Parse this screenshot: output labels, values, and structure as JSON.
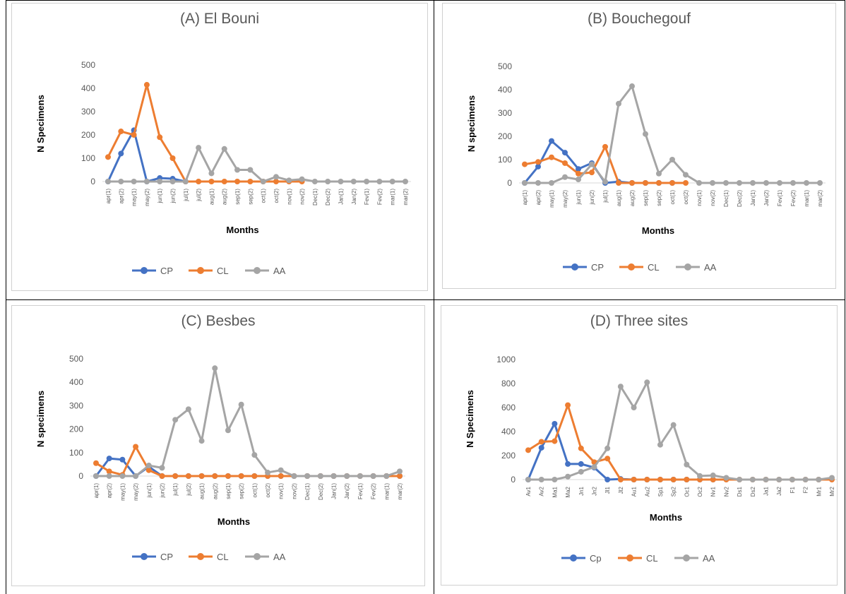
{
  "colors": {
    "CP": "#4472c4",
    "CL": "#ed7d31",
    "AA": "#a5a5a5"
  },
  "chart_data": [
    {
      "type": "line",
      "title": "(A) El Bouni",
      "xlabel": "Months",
      "ylabel": "N Specimens",
      "ylim": [
        0,
        500
      ],
      "yticks": [
        0,
        100,
        200,
        300,
        400,
        500
      ],
      "categories": [
        "apr(1)",
        "apr(2)",
        "may(1)",
        "may(2)",
        "jun(1)",
        "jun(2)",
        "jul(1)",
        "jul(2)",
        "aug(1)",
        "aug(2)",
        "sep(1)",
        "sep(2)",
        "oct(1)",
        "oct(2)",
        "nov(1)",
        "nov(2)",
        "Dec(1)",
        "Dec(2)",
        "Jan(1)",
        "Jan(2)",
        "Fev(1)",
        "Fev(2)",
        "mar(1)",
        "mar(2)"
      ],
      "series": [
        {
          "name": "CP",
          "values": [
            0,
            120,
            220,
            0,
            15,
            12,
            0,
            null,
            null,
            null,
            null,
            null,
            null,
            null,
            null,
            null,
            null,
            null,
            null,
            null,
            null,
            null,
            null,
            null
          ]
        },
        {
          "name": "CL",
          "values": [
            105,
            215,
            200,
            415,
            190,
            100,
            0,
            0,
            0,
            0,
            0,
            0,
            0,
            0,
            0,
            0,
            null,
            null,
            null,
            null,
            null,
            null,
            null,
            null
          ]
        },
        {
          "name": "AA",
          "values": [
            0,
            0,
            0,
            0,
            0,
            0,
            0,
            145,
            35,
            140,
            50,
            50,
            0,
            20,
            5,
            10,
            0,
            0,
            0,
            0,
            0,
            0,
            0,
            0
          ]
        }
      ],
      "legend": [
        "CP",
        "CL",
        "AA"
      ],
      "legend_position": "bottom",
      "grid": false
    },
    {
      "type": "line",
      "title": "(B) Bouchegouf",
      "xlabel": "Months",
      "ylabel": "N specimens",
      "ylim": [
        0,
        500
      ],
      "yticks": [
        0,
        100,
        200,
        300,
        400,
        500
      ],
      "categories": [
        "apr(1)",
        "apr(2)",
        "may(1)",
        "may(2)",
        "jun(1)",
        "jun(2)",
        "jul(1)",
        "aug(1)",
        "aug(2)",
        "sep(1)",
        "sep(2)",
        "oct(1)",
        "oct(2)",
        "nov(1)",
        "nov(2)",
        "Dec(1)",
        "Dec(2)",
        "Jan(1)",
        "Jan(2)",
        "Fev(1)",
        "Fev(2)",
        "mar(1)",
        "mar(2)"
      ],
      "series": [
        {
          "name": "CP",
          "values": [
            0,
            70,
            180,
            130,
            60,
            85,
            0,
            5,
            0,
            0,
            0,
            0,
            null,
            null,
            null,
            null,
            null,
            null,
            null,
            null,
            null,
            null,
            null
          ]
        },
        {
          "name": "CL",
          "values": [
            80,
            90,
            110,
            85,
            40,
            45,
            155,
            0,
            0,
            0,
            0,
            0,
            0,
            null,
            null,
            null,
            null,
            null,
            null,
            null,
            null,
            null,
            null
          ]
        },
        {
          "name": "AA",
          "values": [
            0,
            0,
            0,
            25,
            15,
            80,
            5,
            340,
            415,
            210,
            40,
            100,
            35,
            0,
            0,
            0,
            0,
            0,
            0,
            0,
            0,
            0,
            0
          ]
        }
      ],
      "legend": [
        "CP",
        "CL",
        "AA"
      ],
      "legend_position": "bottom",
      "grid": false
    },
    {
      "type": "line",
      "title": "(C) Besbes",
      "xlabel": "Months",
      "ylabel": "N specimens",
      "ylim": [
        0,
        500
      ],
      "yticks": [
        0,
        100,
        200,
        300,
        400,
        500
      ],
      "categories": [
        "apr(1)",
        "apr(2)",
        "may(1)",
        "may(2)",
        "jun(1)",
        "jun(2)",
        "jul(1)",
        "jul(2)",
        "aug(1)",
        "aug(2)",
        "sep(1)",
        "sep(2)",
        "oct(1)",
        "oct(2)",
        "nov(1)",
        "nov(2)",
        "Dec(1)",
        "Dec(2)",
        "Jan(1)",
        "Jan(2)",
        "Fev(1)",
        "Fev(2)",
        "mar(1)",
        "mar(2)"
      ],
      "series": [
        {
          "name": "CP",
          "values": [
            0,
            75,
            70,
            0,
            40,
            0,
            0,
            0,
            0,
            0,
            0,
            0,
            0,
            0,
            0,
            0,
            0,
            0,
            0,
            0,
            0,
            0,
            0,
            0
          ]
        },
        {
          "name": "CL",
          "values": [
            55,
            20,
            5,
            125,
            25,
            0,
            0,
            0,
            0,
            0,
            0,
            0,
            0,
            0,
            0,
            0,
            0,
            0,
            0,
            0,
            0,
            0,
            0,
            0
          ]
        },
        {
          "name": "AA",
          "values": [
            0,
            0,
            0,
            0,
            45,
            35,
            240,
            285,
            150,
            460,
            195,
            305,
            90,
            15,
            25,
            0,
            0,
            0,
            0,
            0,
            0,
            0,
            0,
            20
          ]
        }
      ],
      "legend": [
        "CP",
        "CL",
        "AA"
      ],
      "legend_position": "bottom",
      "grid": false
    },
    {
      "type": "line",
      "title": "(D) Three sites",
      "xlabel": "Months",
      "ylabel": "N Specimens",
      "ylim": [
        0,
        1000
      ],
      "yticks": [
        0,
        200,
        400,
        600,
        800,
        1000
      ],
      "categories": [
        "Av1",
        "Av2",
        "Ma1",
        "Ma2",
        "Jn1",
        "Jn2",
        "Jl1",
        "Jl2",
        "Au1",
        "Au2",
        "Sp1",
        "Sp2",
        "Oc1",
        "Oc2",
        "Nv1",
        "Nv2",
        "Ds1",
        "Ds2",
        "Ja1",
        "Ja2",
        "F1",
        "F2",
        "Mr1",
        "Mr2"
      ],
      "series": [
        {
          "name": "Cp",
          "values": [
            0,
            265,
            465,
            130,
            130,
            100,
            0,
            5,
            0,
            0,
            0,
            0,
            0,
            0,
            0,
            null,
            null,
            null,
            null,
            null,
            null,
            null,
            null,
            null
          ]
        },
        {
          "name": "CL",
          "values": [
            245,
            315,
            320,
            620,
            260,
            145,
            175,
            0,
            0,
            0,
            0,
            0,
            0,
            0,
            0,
            0,
            0,
            0,
            0,
            0,
            0,
            0,
            0,
            0
          ]
        },
        {
          "name": "AA",
          "values": [
            0,
            0,
            0,
            25,
            65,
            105,
            260,
            775,
            600,
            810,
            290,
            455,
            125,
            30,
            35,
            15,
            0,
            0,
            0,
            0,
            0,
            0,
            0,
            15
          ]
        }
      ],
      "legend": [
        "Cp",
        "CL",
        "AA"
      ],
      "legend_position": "bottom",
      "grid": false
    }
  ]
}
